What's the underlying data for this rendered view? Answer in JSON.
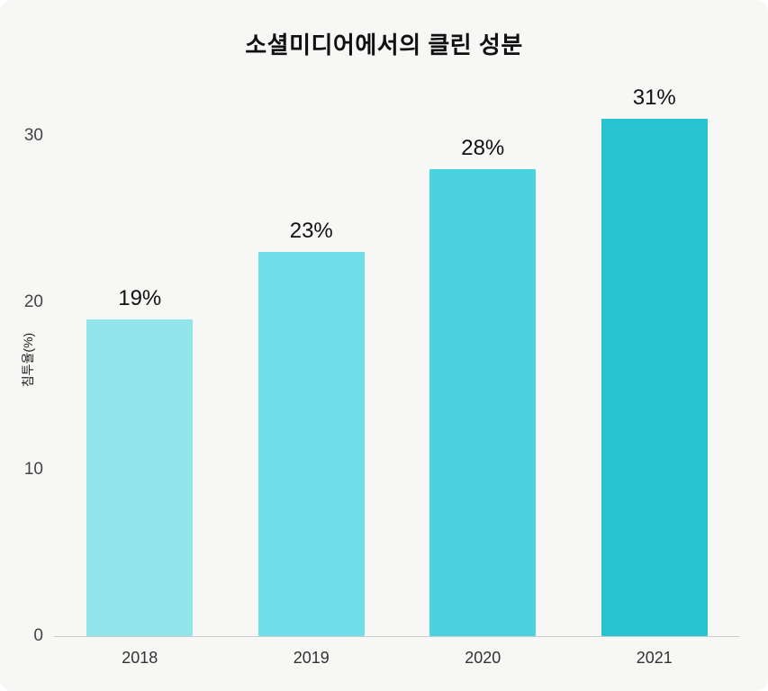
{
  "page": {
    "background_color": "#f7f7f5"
  },
  "chart_data": {
    "type": "bar",
    "title": "소셜미디어에서의 클린 성분",
    "categories": [
      "2018",
      "2019",
      "2020",
      "2021"
    ],
    "values": [
      19,
      23,
      28,
      31
    ],
    "value_labels": [
      "19%",
      "23%",
      "28%",
      "31%"
    ],
    "xlabel": "",
    "ylabel": "침투율(%)",
    "yticks": [
      0,
      10,
      20,
      30
    ],
    "ylim": [
      0,
      33
    ],
    "grid": false,
    "legend": false,
    "bar_colors": [
      "#92e5eb",
      "#70dee8",
      "#4ad3df",
      "#27c3d2"
    ],
    "axis_line_color": "#cccccc"
  }
}
